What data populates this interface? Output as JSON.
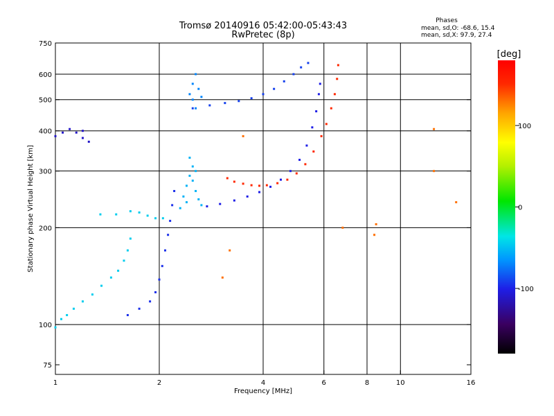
{
  "chart_data": {
    "type": "scatter",
    "title": "Tromsø 20140916 05:42:00-05:43:43",
    "subtitle": "RwPretec (8p)",
    "xlabel": "Frequency [MHz]",
    "ylabel": "Stationary phase Virtual Height [km]",
    "x_scale": "log",
    "y_scale": "log",
    "xlim": [
      1,
      16
    ],
    "ylim": [
      70,
      750
    ],
    "x_ticks": [
      1,
      2,
      4,
      6,
      8,
      10,
      16
    ],
    "x_tick_labels": [
      "1",
      "2",
      "4",
      "6",
      "8",
      "10",
      "16"
    ],
    "y_ticks": [
      75,
      100,
      200,
      300,
      400,
      500,
      600,
      750
    ],
    "y_tick_labels": [
      "75",
      "100",
      "200",
      "300",
      "400",
      "500",
      "600",
      "750"
    ],
    "x_gridlines": [
      2,
      4,
      6,
      8,
      10
    ],
    "y_gridlines": [
      100,
      200,
      300,
      400,
      500,
      600
    ],
    "grid": true,
    "phases_info": {
      "header": "Phases",
      "line_o": "mean, sd,O: -68.6, 15.4",
      "line_x": "mean, sd,X: 97.9, 27.4"
    },
    "colorbar": {
      "label": "[deg]",
      "range": [
        -180,
        180
      ],
      "ticks": [
        100,
        0,
        -100
      ],
      "tick_labels": [
        "100",
        "0",
        "-100"
      ],
      "colors": [
        "#000000",
        "#3a0060",
        "#1e1ee6",
        "#0096ff",
        "#00e6e6",
        "#00e600",
        "#b4f000",
        "#ffff00",
        "#ffa500",
        "#ff2800",
        "#ff0000"
      ]
    },
    "series": [
      {
        "trace": "low-trace",
        "phase": -45,
        "points": [
          [
            1.0,
            98
          ],
          [
            1.04,
            104
          ],
          [
            1.08,
            107
          ],
          [
            1.13,
            112
          ],
          [
            1.2,
            118
          ],
          [
            1.28,
            124
          ],
          [
            1.36,
            132
          ],
          [
            1.45,
            140
          ],
          [
            1.52,
            147
          ],
          [
            1.58,
            158
          ],
          [
            1.62,
            170
          ],
          [
            1.65,
            185
          ]
        ]
      },
      {
        "trace": "low-2mhz-trace",
        "phase": -95,
        "points": [
          [
            1.62,
            107
          ],
          [
            1.75,
            112
          ],
          [
            1.88,
            118
          ],
          [
            1.95,
            126
          ],
          [
            2.0,
            138
          ],
          [
            2.04,
            152
          ],
          [
            2.08,
            170
          ],
          [
            2.12,
            190
          ],
          [
            2.15,
            210
          ],
          [
            2.18,
            235
          ],
          [
            2.21,
            260
          ]
        ]
      },
      {
        "trace": "flat-trace",
        "phase": -45,
        "points": [
          [
            1.35,
            220
          ],
          [
            1.5,
            220
          ],
          [
            1.65,
            225
          ],
          [
            1.75,
            223
          ],
          [
            1.85,
            218
          ],
          [
            1.95,
            214
          ],
          [
            2.05,
            214
          ]
        ]
      },
      {
        "trace": "e-layer-cluster",
        "phase": -55,
        "points": [
          [
            2.3,
            230
          ],
          [
            2.35,
            250
          ],
          [
            2.4,
            270
          ],
          [
            2.45,
            290
          ],
          [
            2.5,
            310
          ],
          [
            2.4,
            240
          ],
          [
            2.55,
            260
          ],
          [
            2.6,
            245
          ],
          [
            2.65,
            235
          ],
          [
            2.5,
            280
          ],
          [
            2.45,
            330
          ],
          [
            2.55,
            300
          ]
        ]
      },
      {
        "trace": "x-trace-lower",
        "phase": -100,
        "points": [
          [
            2.75,
            233
          ],
          [
            3.0,
            237
          ],
          [
            3.3,
            243
          ],
          [
            3.6,
            250
          ],
          [
            3.9,
            258
          ],
          [
            4.2,
            268
          ],
          [
            4.5,
            282
          ],
          [
            4.8,
            300
          ],
          [
            5.1,
            325
          ],
          [
            5.35,
            360
          ],
          [
            5.55,
            410
          ],
          [
            5.7,
            460
          ],
          [
            5.8,
            520
          ],
          [
            5.85,
            560
          ]
        ]
      },
      {
        "trace": "o-trace-orange",
        "phase": 150,
        "points": [
          [
            3.15,
            285
          ],
          [
            3.3,
            278
          ],
          [
            3.5,
            274
          ],
          [
            3.7,
            271
          ],
          [
            3.9,
            270
          ],
          [
            4.1,
            271
          ],
          [
            4.4,
            275
          ],
          [
            4.7,
            282
          ],
          [
            5.0,
            295
          ],
          [
            5.3,
            315
          ],
          [
            5.6,
            345
          ],
          [
            5.9,
            385
          ],
          [
            6.1,
            420
          ],
          [
            6.3,
            470
          ],
          [
            6.45,
            520
          ],
          [
            6.55,
            580
          ],
          [
            6.6,
            640
          ]
        ]
      },
      {
        "trace": "f2-upper-trace",
        "phase": -90,
        "points": [
          [
            2.5,
            470
          ],
          [
            2.8,
            480
          ],
          [
            3.1,
            488
          ],
          [
            3.4,
            495
          ],
          [
            3.7,
            505
          ],
          [
            4.0,
            520
          ],
          [
            4.3,
            540
          ],
          [
            4.6,
            570
          ],
          [
            4.9,
            600
          ],
          [
            5.15,
            630
          ],
          [
            5.4,
            650
          ]
        ]
      },
      {
        "trace": "f2-upper-cluster",
        "phase": -70,
        "points": [
          [
            2.45,
            520
          ],
          [
            2.5,
            560
          ],
          [
            2.55,
            600
          ],
          [
            2.5,
            500
          ],
          [
            2.6,
            540
          ],
          [
            2.55,
            470
          ],
          [
            2.65,
            510
          ]
        ]
      },
      {
        "trace": "low-f-clump",
        "phase": -110,
        "points": [
          [
            1.0,
            385
          ],
          [
            1.05,
            395
          ],
          [
            1.1,
            405
          ],
          [
            1.15,
            395
          ],
          [
            1.2,
            380
          ],
          [
            1.25,
            370
          ],
          [
            1.2,
            400
          ]
        ]
      },
      {
        "trace": "scattered",
        "phase": 130,
        "points": [
          [
            3.2,
            170
          ],
          [
            3.05,
            140
          ],
          [
            3.5,
            385
          ],
          [
            6.8,
            200
          ],
          [
            8.4,
            190
          ],
          [
            8.5,
            205
          ],
          [
            12.5,
            300
          ],
          [
            12.5,
            405
          ],
          [
            14.5,
            240
          ]
        ]
      }
    ]
  }
}
